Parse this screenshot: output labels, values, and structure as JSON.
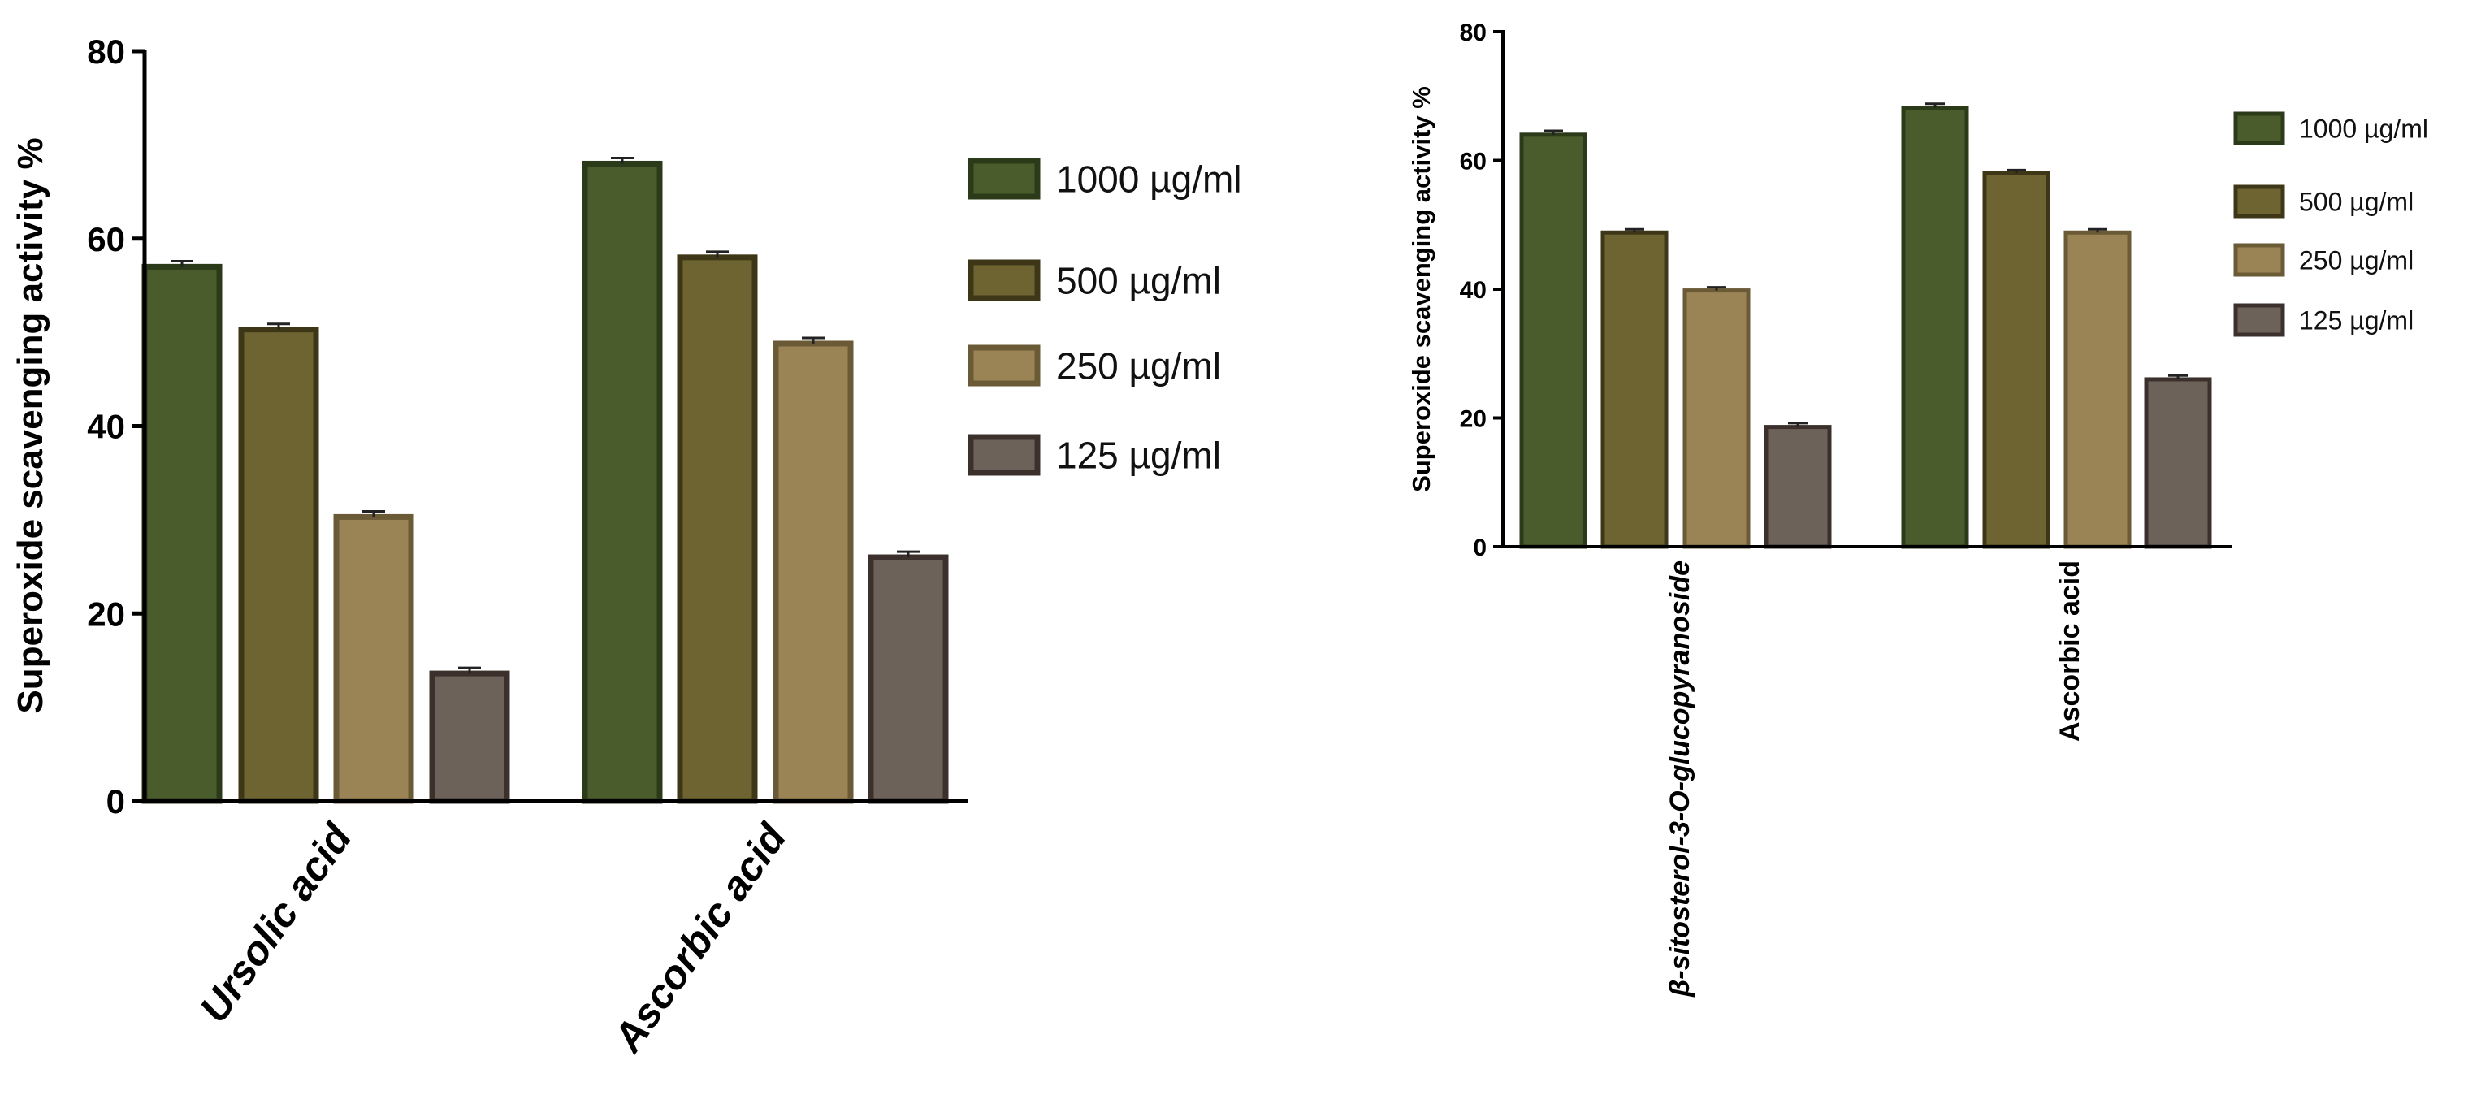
{
  "chart_data": [
    {
      "type": "bar",
      "title": "",
      "xlabel": "",
      "ylabel": "Superoxide scavenging activity %",
      "ylim": [
        0,
        80
      ],
      "yticks": [
        0,
        20,
        40,
        60,
        80
      ],
      "categories": [
        "Ursolic acid",
        "Ascorbic acid"
      ],
      "category_style": "italic",
      "legend_position": "right",
      "series": [
        {
          "name": "1000 µg/ml",
          "values": [
            57,
            68
          ],
          "errors": [
            0.6,
            0.6
          ]
        },
        {
          "name": "500 µg/ml",
          "values": [
            50.3,
            58
          ],
          "errors": [
            0.6,
            0.6
          ]
        },
        {
          "name": "250 µg/ml",
          "values": [
            30.3,
            48.8
          ],
          "errors": [
            0.6,
            0.6
          ]
        },
        {
          "name": "125 µg/ml",
          "values": [
            13.6,
            26
          ],
          "errors": [
            0.6,
            0.6
          ]
        }
      ]
    },
    {
      "type": "bar",
      "title": "",
      "xlabel": "",
      "ylabel": "Superoxide scavenging activity %",
      "ylim": [
        0,
        80
      ],
      "yticks": [
        0,
        20,
        40,
        60,
        80
      ],
      "categories": [
        "β-sitosterol-3-O-glucopyranoside",
        "Ascorbic acid"
      ],
      "category_style": "italic-first",
      "legend_position": "right",
      "series": [
        {
          "name": "1000 µg/ml",
          "values": [
            64,
            68.2
          ],
          "errors": [
            0.6,
            0.6
          ]
        },
        {
          "name": "500 µg/ml",
          "values": [
            48.8,
            58
          ],
          "errors": [
            0.5,
            0.5
          ]
        },
        {
          "name": "250 µg/ml",
          "values": [
            39.8,
            48.8
          ],
          "errors": [
            0.5,
            0.5
          ]
        },
        {
          "name": "125 µg/ml",
          "values": [
            18.6,
            26
          ],
          "errors": [
            0.6,
            0.6
          ]
        }
      ]
    }
  ],
  "colors": {
    "series_fill": [
      "#4b5c2c",
      "#6e6432",
      "#9a8456",
      "#6c625a"
    ],
    "series_stroke": [
      "#2b3a18",
      "#3e3717",
      "#6a5a35",
      "#3c302c"
    ],
    "axis": "#000000"
  }
}
